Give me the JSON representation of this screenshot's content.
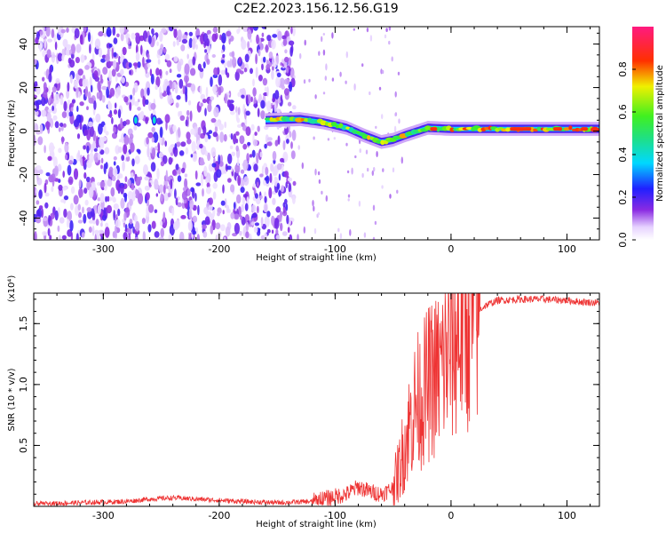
{
  "title": "C2E2.2023.156.12.56.G19",
  "colors": {
    "snr_line": "#ee3333",
    "frame": "#000000"
  },
  "chart_data": [
    {
      "type": "heatmap",
      "xlabel": "Height of straight line (km)",
      "ylabel": "Frequency (Hz)",
      "xlim": [
        -360,
        128
      ],
      "ylim": [
        -50,
        48
      ],
      "xticks": [
        -300,
        -200,
        -100,
        0,
        100
      ],
      "yticks": [
        -40,
        -20,
        0,
        20,
        40
      ],
      "colorbar": {
        "label": "Normalized spectral amplitude",
        "range": [
          0,
          1
        ],
        "ticks": [
          "0.0",
          "0.2",
          "0.4",
          "0.6",
          "0.8"
        ],
        "colormap": "rainbow: white-lavender, violet, blue, cyan, green, yellow, red, magenta"
      },
      "features": {
        "noise_region_x": [
          -360,
          -135
        ],
        "sparse_region_x": [
          -135,
          -40
        ],
        "signal_track": [
          {
            "x": -160,
            "f": 5
          },
          {
            "x": -130,
            "f": 5.5
          },
          {
            "x": -110,
            "f": 4
          },
          {
            "x": -90,
            "f": 1.5
          },
          {
            "x": -75,
            "f": -2
          },
          {
            "x": -60,
            "f": -5
          },
          {
            "x": -50,
            "f": -4
          },
          {
            "x": -40,
            "f": -2
          },
          {
            "x": -20,
            "f": 1.5
          },
          {
            "x": 0,
            "f": 1
          },
          {
            "x": 50,
            "f": 1
          },
          {
            "x": 100,
            "f": 1
          },
          {
            "x": 128,
            "f": 1
          }
        ]
      }
    },
    {
      "type": "line",
      "xlabel": "Height of straight line (km)",
      "ylabel": "SNR (10 * v/v)",
      "y_multiplier": "(x10⁴)",
      "xlim": [
        -360,
        128
      ],
      "ylim": [
        0,
        1.75
      ],
      "xticks": [
        -300,
        -200,
        -100,
        0,
        100
      ],
      "yticks": [
        0.5,
        1.0,
        1.5
      ],
      "ytick_labels": [
        "0.5",
        "1.0",
        "1.5"
      ],
      "series": [
        {
          "x": [
            -360,
            -320,
            -280,
            -260,
            -240,
            -220,
            -200,
            -180,
            -150,
            -120,
            -110,
            -90,
            -80,
            -70,
            -60,
            -50,
            -45,
            -40,
            -35,
            -30,
            -25,
            -20,
            -15,
            -10,
            -5,
            0,
            5,
            10,
            20,
            30,
            40,
            60,
            80,
            100,
            110,
            128
          ],
          "y": [
            0.02,
            0.03,
            0.04,
            0.06,
            0.07,
            0.06,
            0.05,
            0.04,
            0.03,
            0.04,
            0.06,
            0.1,
            0.16,
            0.12,
            0.1,
            0.15,
            0.3,
            0.5,
            0.7,
            0.85,
            0.9,
            1.0,
            1.05,
            1.1,
            1.2,
            1.3,
            1.4,
            1.5,
            1.58,
            1.65,
            1.69,
            1.7,
            1.7,
            1.69,
            1.68,
            1.67
          ]
        }
      ]
    }
  ]
}
